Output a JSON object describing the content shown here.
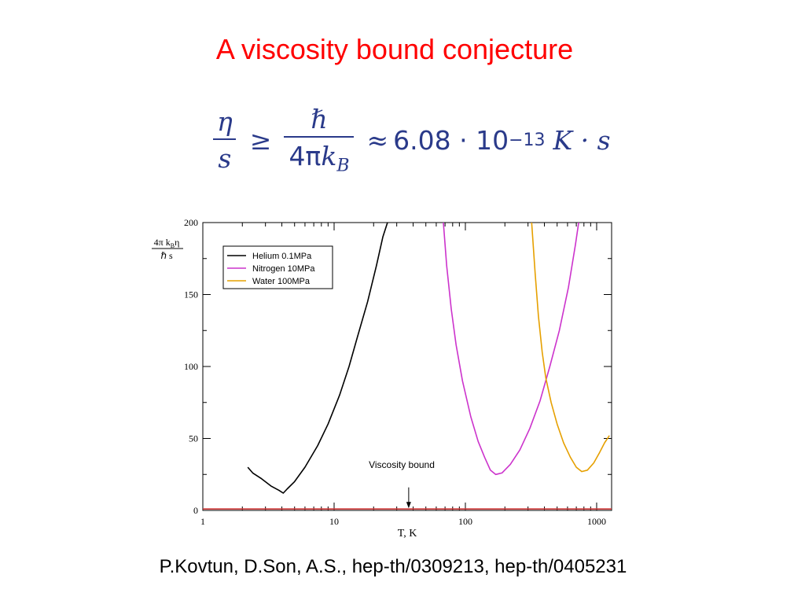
{
  "slide": {
    "title": "A viscosity bound conjecture",
    "formula": {
      "lhs_num": "η",
      "lhs_den": "s",
      "relation": "≥",
      "rhs_num": "ℏ",
      "rhs_den_coef": "4π",
      "rhs_den_var": "k",
      "rhs_den_sub": "B",
      "approx": "≈",
      "value": "6.08 · 10",
      "exponent": "−13",
      "units": "K · s"
    },
    "citation": "P.Kovtun, D.Son, A.S., hep-th/0309213, hep-th/0405231"
  },
  "chart_data": {
    "type": "line",
    "x_scale": "log",
    "xlim": [
      1,
      1300
    ],
    "ylim": [
      0,
      200
    ],
    "xlabel": "T, K",
    "ylabel": {
      "num_coef": "4π k",
      "num_sub": "B",
      "num_tail": "η",
      "den": "ℏ s"
    },
    "x_ticks": [
      {
        "value": 1,
        "label": "1"
      },
      {
        "value": 10,
        "label": "10"
      },
      {
        "value": 100,
        "label": "100"
      },
      {
        "value": 1000,
        "label": "1000"
      }
    ],
    "y_ticks": [
      {
        "value": 0,
        "label": "0"
      },
      {
        "value": 50,
        "label": "50"
      },
      {
        "value": 100,
        "label": "100"
      },
      {
        "value": 150,
        "label": "150"
      },
      {
        "value": 200,
        "label": "200"
      }
    ],
    "grid": false,
    "legend_position": "top-left",
    "series": [
      {
        "name": "Helium 0.1MPa",
        "color": "#000000",
        "x": [
          2.2,
          2.4,
          2.8,
          3.3,
          3.8,
          4.1,
          4.4,
          5.0,
          6.0,
          7.5,
          9.0,
          11.0,
          13.0,
          15.0,
          18.0,
          21.0,
          23.5,
          25.5
        ],
        "y": [
          30,
          26,
          22,
          17,
          14,
          12,
          15,
          20,
          30,
          45,
          60,
          80,
          100,
          120,
          145,
          170,
          190,
          200
        ]
      },
      {
        "name": "Nitrogen 10MPa",
        "color": "#cc33cc",
        "x": [
          68,
          72,
          78,
          85,
          95,
          110,
          125,
          140,
          155,
          170,
          190,
          220,
          260,
          310,
          370,
          440,
          520,
          610,
          690,
          730
        ],
        "y": [
          200,
          170,
          140,
          115,
          90,
          65,
          48,
          37,
          28,
          25,
          26,
          32,
          42,
          57,
          76,
          100,
          125,
          155,
          185,
          200
        ]
      },
      {
        "name": "Water 100MPa",
        "color": "#e6a000",
        "x": [
          320,
          340,
          360,
          385,
          410,
          450,
          500,
          560,
          630,
          700,
          770,
          850,
          950,
          1050,
          1150,
          1250
        ],
        "y": [
          200,
          165,
          135,
          110,
          92,
          75,
          60,
          47,
          37,
          30,
          27,
          28,
          33,
          40,
          47,
          52
        ]
      },
      {
        "name": "",
        "color": "#cc3333",
        "x": [
          1,
          1300
        ],
        "y": [
          1,
          1
        ]
      }
    ],
    "annotation": {
      "text": "Viscosity bound",
      "arrow_x": 37,
      "arrow_y_top": 16,
      "arrow_y_bottom": 1.5
    }
  }
}
